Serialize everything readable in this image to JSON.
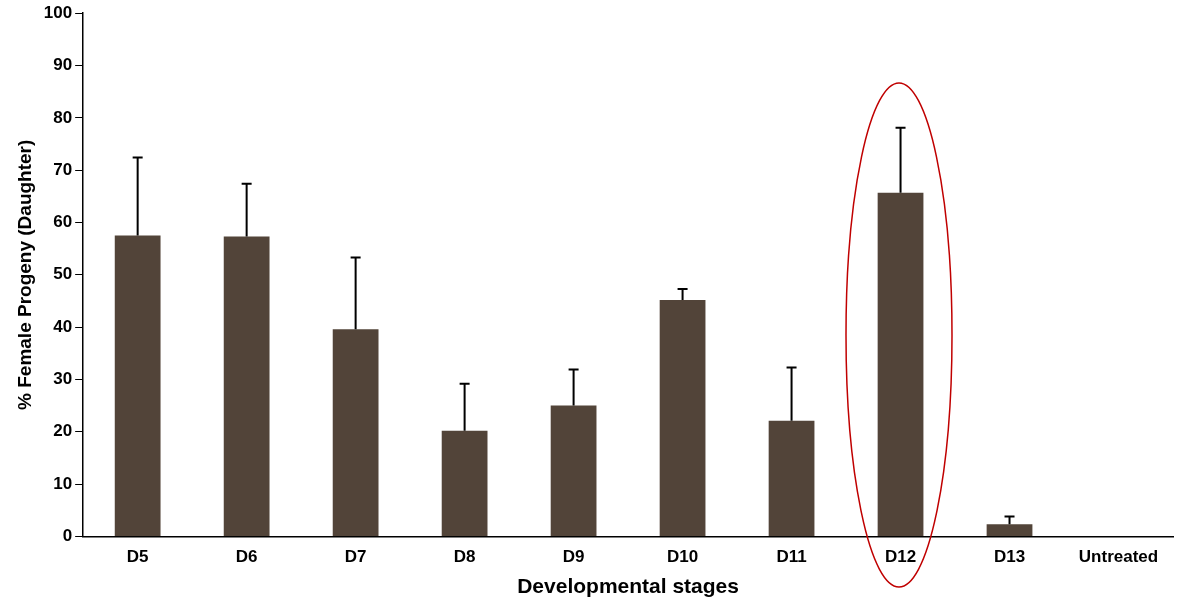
{
  "chart_data": {
    "type": "bar",
    "xlabel": "Developmental stages",
    "ylabel": "% Female Progeny (Daughter)",
    "categories": [
      "D5",
      "D6",
      "D7",
      "D8",
      "D9",
      "D10",
      "D11",
      "D12",
      "D13",
      "Untreated"
    ],
    "values": [
      57.5,
      57.3,
      39.6,
      20.2,
      25.0,
      45.2,
      22.1,
      65.7,
      2.3,
      0
    ],
    "errors": [
      [
        57.5,
        72.4
      ],
      [
        57.3,
        67.4
      ],
      [
        39.6,
        53.3
      ],
      [
        20.2,
        29.2
      ],
      [
        25.0,
        31.9
      ],
      [
        45.2,
        47.3
      ],
      [
        22.1,
        32.3
      ],
      [
        65.7,
        78.1
      ],
      [
        2.3,
        3.8
      ],
      null
    ],
    "color": "#524439",
    "ylim": [
      0,
      100
    ],
    "yticks": [
      0,
      10,
      20,
      30,
      40,
      50,
      60,
      70,
      80,
      90,
      100
    ],
    "grid": false,
    "legend": false
  }
}
